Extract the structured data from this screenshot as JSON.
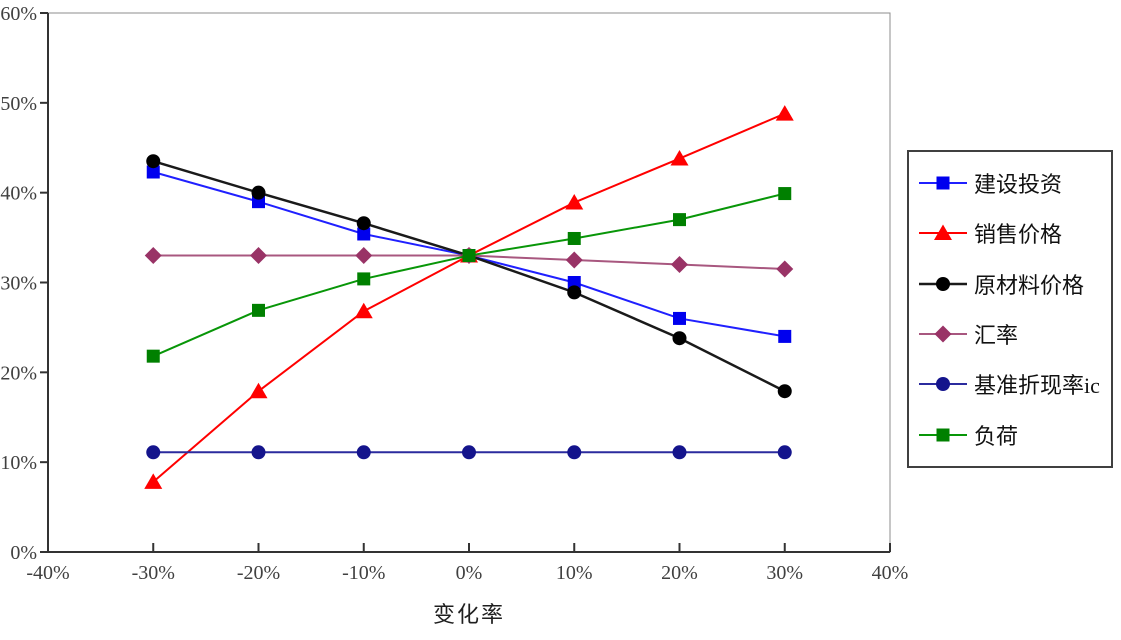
{
  "chart_data": {
    "type": "line",
    "title": "",
    "xlabel": "变化率",
    "ylabel": "",
    "xlim": [
      -40,
      40
    ],
    "ylim": [
      0,
      60
    ],
    "grid": false,
    "legend_position": "right",
    "x_ticks": [
      -40,
      -30,
      -20,
      -10,
      0,
      10,
      20,
      30,
      40
    ],
    "x_tick_labels": [
      "-40%",
      "-30%",
      "-20%",
      "-10%",
      "0%",
      "10%",
      "20%",
      "30%",
      "40%"
    ],
    "y_ticks": [
      0,
      10,
      20,
      30,
      40,
      50,
      60
    ],
    "y_tick_labels": [
      "0%",
      "10%",
      "20%",
      "30%",
      "40%",
      "50%",
      "60%"
    ],
    "x": [
      -30,
      -20,
      -10,
      0,
      10,
      20,
      30
    ],
    "series": [
      {
        "name": "建设投资",
        "marker": "square",
        "color": "#0000EE",
        "line_color": "#2020FF",
        "line_width": 2,
        "values": [
          42.3,
          39.0,
          35.4,
          33.0,
          30.0,
          26.0,
          24.0
        ]
      },
      {
        "name": "销售价格",
        "marker": "triangle",
        "color": "#FF0000",
        "line_color": "#FF0000",
        "line_width": 2,
        "values": [
          7.8,
          17.9,
          26.8,
          33.0,
          38.9,
          43.8,
          48.8
        ]
      },
      {
        "name": "原材料价格",
        "marker": "circle",
        "color": "#000000",
        "line_color": "#1A1A1A",
        "line_width": 2.5,
        "values": [
          43.5,
          40.0,
          36.6,
          33.0,
          28.9,
          23.8,
          17.9
        ]
      },
      {
        "name": "汇率",
        "marker": "diamond",
        "color": "#993366",
        "line_color": "#A8577F",
        "line_width": 2,
        "values": [
          33.0,
          33.0,
          33.0,
          33.0,
          32.5,
          32.0,
          31.5
        ]
      },
      {
        "name": "基准折现率ic",
        "marker": "circle",
        "color": "#14148C",
        "line_color": "#2B2B9E",
        "line_width": 2,
        "values": [
          11.1,
          11.1,
          11.1,
          11.1,
          11.1,
          11.1,
          11.1
        ]
      },
      {
        "name": "负荷",
        "marker": "square",
        "color": "#008000",
        "line_color": "#089608",
        "line_width": 2,
        "values": [
          21.8,
          26.9,
          30.4,
          33.0,
          34.9,
          37.0,
          39.9
        ]
      }
    ],
    "style": {
      "axis_color": "#333333",
      "plot_border_color": "#8C8C8C",
      "tick_label_color": "#404040",
      "legend_border_color": "#404040",
      "background": "#FFFFFF"
    }
  }
}
